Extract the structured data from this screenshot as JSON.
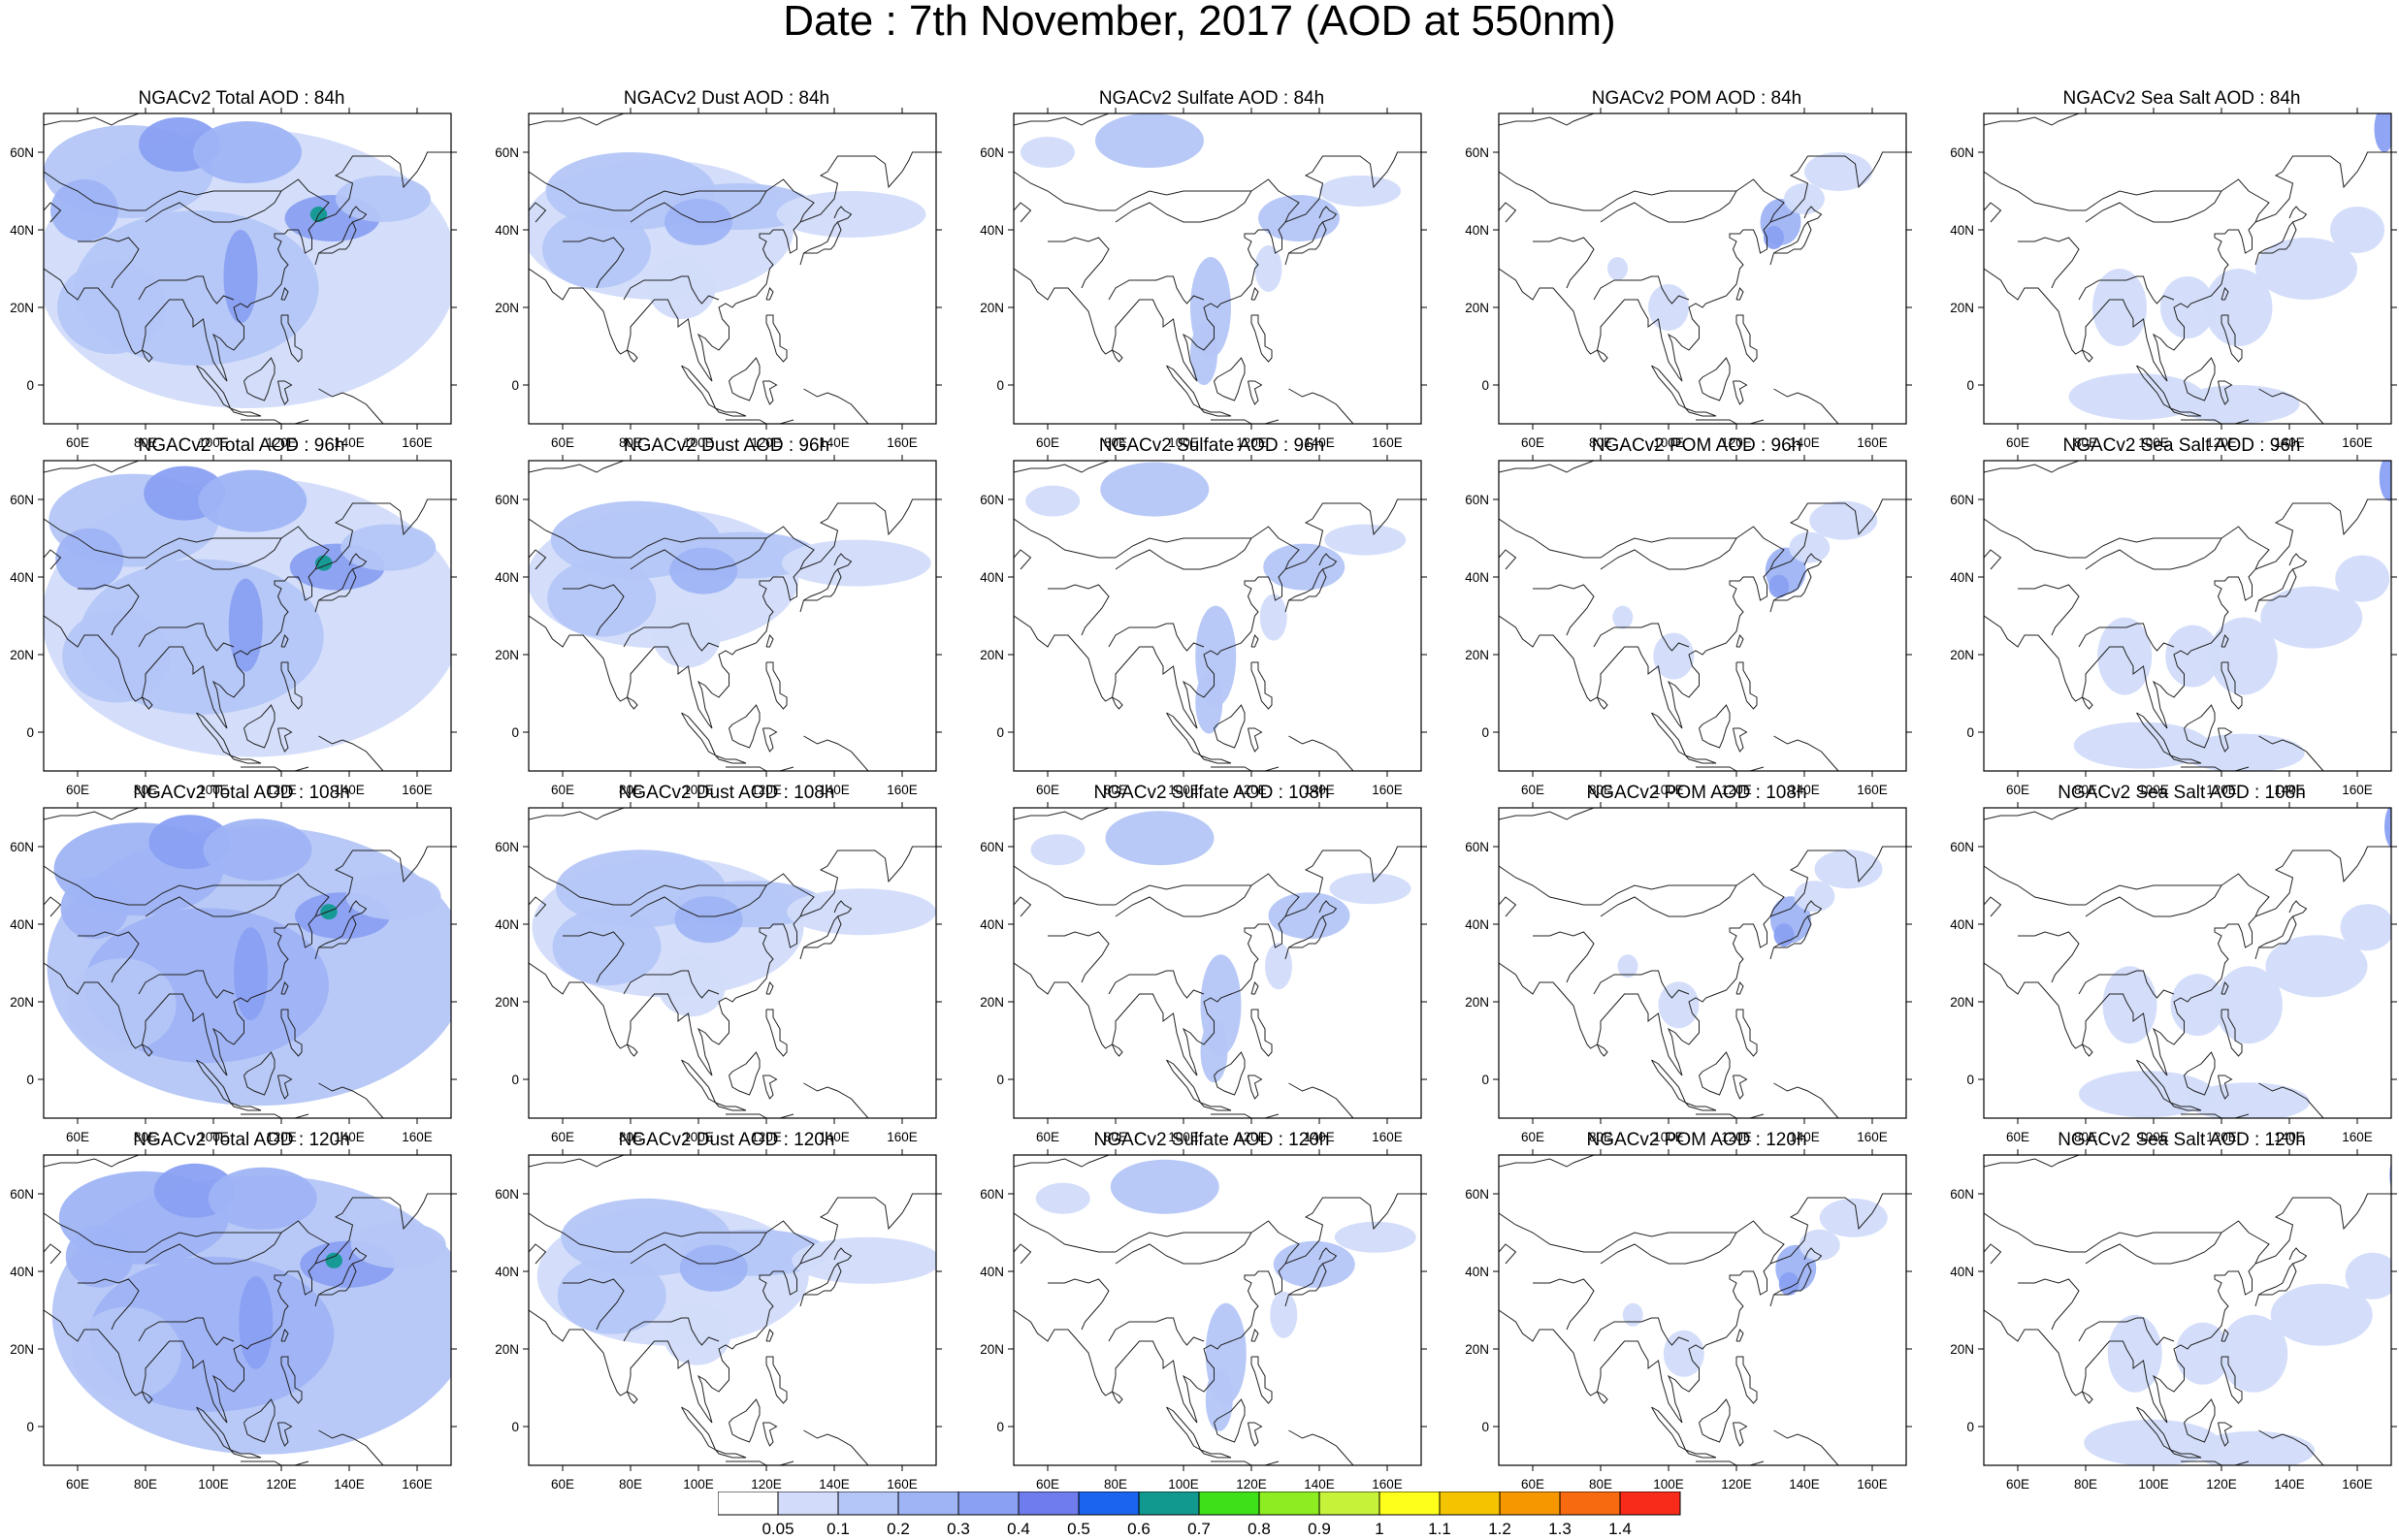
{
  "title": "Date : 7th November, 2017 (AOD at 550nm)",
  "map_data": {
    "extent": {
      "lon": [
        50,
        170
      ],
      "lat": [
        -10,
        70
      ]
    },
    "lon_ticks": [
      "60E",
      "80E",
      "100E",
      "120E",
      "140E",
      "160E"
    ],
    "lat_ticks": [
      "60N",
      "40N",
      "20N",
      "0"
    ],
    "panels": [
      {
        "title": "NGACv2 Total AOD : 84h",
        "species": "total",
        "hour": 84
      },
      {
        "title": "NGACv2 Dust AOD : 84h",
        "species": "dust",
        "hour": 84
      },
      {
        "title": "NGACv2 Sulfate AOD : 84h",
        "species": "sulfate",
        "hour": 84
      },
      {
        "title": "NGACv2 POM AOD : 84h",
        "species": "pom",
        "hour": 84
      },
      {
        "title": "NGACv2 Sea Salt AOD : 84h",
        "species": "seasalt",
        "hour": 84
      },
      {
        "title": "NGACv2 Total AOD : 96h",
        "species": "total",
        "hour": 96
      },
      {
        "title": "NGACv2 Dust AOD : 96h",
        "species": "dust",
        "hour": 96
      },
      {
        "title": "NGACv2 Sulfate AOD : 96h",
        "species": "sulfate",
        "hour": 96
      },
      {
        "title": "NGACv2 POM AOD : 96h",
        "species": "pom",
        "hour": 96
      },
      {
        "title": "NGACv2 Sea Salt AOD : 96h",
        "species": "seasalt",
        "hour": 96
      },
      {
        "title": "NGACv2 Total AOD : 108h",
        "species": "total",
        "hour": 108
      },
      {
        "title": "NGACv2 Dust AOD : 108h",
        "species": "dust",
        "hour": 108
      },
      {
        "title": "NGACv2 Sulfate AOD : 108h",
        "species": "sulfate",
        "hour": 108
      },
      {
        "title": "NGACv2 POM AOD : 108h",
        "species": "pom",
        "hour": 108
      },
      {
        "title": "NGACv2 Sea Salt AOD : 108h",
        "species": "seasalt",
        "hour": 108
      },
      {
        "title": "NGACv2 Total AOD : 120h",
        "species": "total",
        "hour": 120
      },
      {
        "title": "NGACv2 Dust AOD : 120h",
        "species": "dust",
        "hour": 120
      },
      {
        "title": "NGACv2 Sulfate AOD : 120h",
        "species": "sulfate",
        "hour": 120
      },
      {
        "title": "NGACv2 POM AOD : 120h",
        "species": "pom",
        "hour": 120
      },
      {
        "title": "NGACv2 Sea Salt  AOD : 120h",
        "species": "seasalt",
        "hour": 120
      }
    ]
  },
  "colorbar": {
    "labels": [
      "0.05",
      "0.1",
      "0.2",
      "0.3",
      "0.4",
      "0.5",
      "0.6",
      "0.7",
      "0.8",
      "0.9",
      "1",
      "1.1",
      "1.2",
      "1.3",
      "1.4"
    ],
    "colors": [
      "#ffffff",
      "#d2dcfa",
      "#b4c6f7",
      "#9fb4f5",
      "#8aa0f2",
      "#6f7cee",
      "#1a64f0",
      "#11998f",
      "#3ee01a",
      "#8ced20",
      "#c6f23a",
      "#ffff1c",
      "#f5c400",
      "#f79700",
      "#f86a10",
      "#f82a1a"
    ]
  }
}
